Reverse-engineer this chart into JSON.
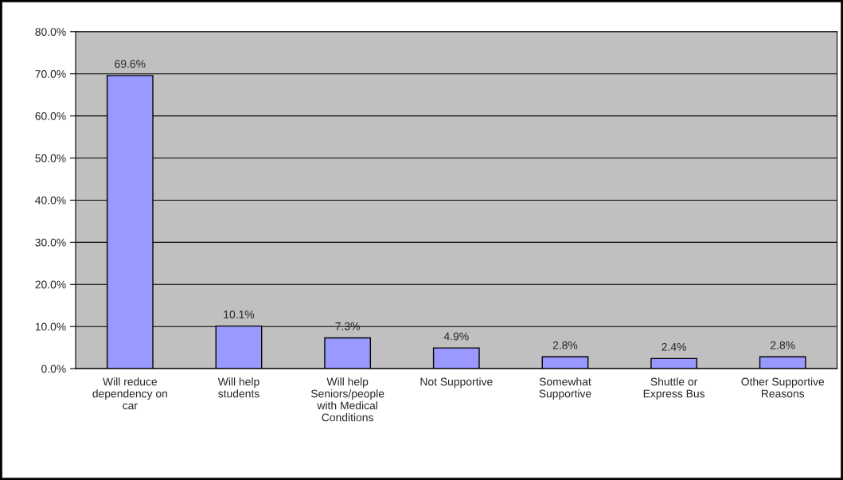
{
  "chart_data": {
    "type": "bar",
    "categories": [
      "Will reduce\ndependency on\ncar",
      "Will help\nstudents",
      "Will help\nSeniors/people\nwith Medical\nConditions",
      "Not Supportive",
      "Somewhat\nSupportive",
      "Shuttle or\nExpress Bus",
      "Other Supportive\nReasons"
    ],
    "values": [
      69.6,
      10.1,
      7.3,
      4.9,
      2.8,
      2.4,
      2.8
    ],
    "value_labels": [
      "69.6%",
      "10.1%",
      "7.3%",
      "4.9%",
      "2.8%",
      "2.4%",
      "2.8%"
    ],
    "color": "#9999ff",
    "ylim": [
      0,
      80
    ],
    "yticks": [
      {
        "value": 0,
        "label": "0.0%"
      },
      {
        "value": 10,
        "label": "10.0%"
      },
      {
        "value": 20,
        "label": "20.0%"
      },
      {
        "value": 30,
        "label": "30.0%"
      },
      {
        "value": 40,
        "label": "40.0%"
      },
      {
        "value": 50,
        "label": "50.0%"
      },
      {
        "value": 60,
        "label": "60.0%"
      },
      {
        "value": 70,
        "label": "70.0%"
      },
      {
        "value": 80,
        "label": "80.0%"
      }
    ],
    "grid": "y",
    "legend": false
  }
}
